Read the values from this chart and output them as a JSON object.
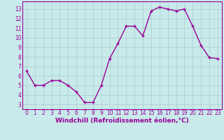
{
  "x": [
    0,
    1,
    2,
    3,
    4,
    5,
    6,
    7,
    8,
    9,
    10,
    11,
    12,
    13,
    14,
    15,
    16,
    17,
    18,
    19,
    20,
    21,
    22,
    23
  ],
  "y": [
    6.5,
    5.0,
    5.0,
    5.5,
    5.5,
    5.0,
    4.3,
    3.2,
    3.2,
    5.0,
    7.8,
    9.4,
    11.2,
    11.2,
    10.2,
    12.8,
    13.2,
    13.0,
    12.8,
    13.0,
    11.2,
    9.2,
    7.9,
    7.8
  ],
  "line_color": "#990099",
  "marker": "P",
  "marker_size": 2.5,
  "line_width": 1.0,
  "bg_color": "#c8eaea",
  "grid_color": "#aacccc",
  "xlabel": "Windchill (Refroidissement éolien,°C)",
  "xlabel_color": "#990099",
  "xlabel_fontsize": 6.5,
  "tick_color": "#990099",
  "tick_fontsize": 5.5,
  "ytick_labels": [
    "3",
    "4",
    "5",
    "6",
    "7",
    "8",
    "9",
    "10",
    "11",
    "12",
    "13"
  ],
  "ytick_values": [
    3,
    4,
    5,
    6,
    7,
    8,
    9,
    10,
    11,
    12,
    13
  ],
  "xlim": [
    -0.5,
    23.5
  ],
  "ylim": [
    2.5,
    13.8
  ],
  "spine_color": "#990099"
}
